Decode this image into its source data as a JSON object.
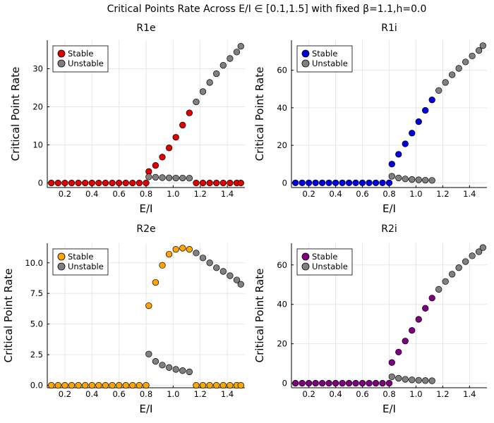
{
  "suptitle": "Critical Points Rate Across E/I ∈ [0.1,1.5] with fixed β=1.1,h=0.0",
  "colors": {
    "unstable": "#808080"
  },
  "chart_data": [
    {
      "type": "scatter",
      "title": "R1e",
      "xlabel": "E/I",
      "ylabel": "Critical Point Rate",
      "xlim": [
        0.07,
        1.53
      ],
      "ylim": [
        -1.2,
        37.5
      ],
      "xticks": [
        0.2,
        0.4,
        0.6,
        0.8,
        1.0,
        1.2,
        1.4
      ],
      "xtick_labels": [
        "0.2",
        "0.4",
        "0.6",
        "0.8",
        "1.0",
        "1.2",
        "1.4"
      ],
      "yticks": [
        0,
        10,
        20,
        30
      ],
      "ytick_labels": [
        "0",
        "10",
        "20",
        "30"
      ],
      "grid": true,
      "legend_position": "top-left",
      "series": [
        {
          "name": "Stable",
          "color": "#e00000",
          "x": [
            0.1,
            0.15,
            0.2,
            0.25,
            0.3,
            0.35,
            0.4,
            0.45,
            0.5,
            0.55,
            0.6,
            0.65,
            0.7,
            0.75,
            0.8,
            0.82,
            0.87,
            0.92,
            0.97,
            1.02,
            1.07,
            1.12,
            1.17,
            1.22,
            1.27,
            1.32,
            1.37,
            1.42,
            1.47,
            1.5
          ],
          "y": [
            0,
            0,
            0,
            0,
            0,
            0,
            0,
            0,
            0,
            0,
            0,
            0,
            0,
            0,
            0,
            3.0,
            4.6,
            6.8,
            9.2,
            12.0,
            15.2,
            18.4,
            0,
            0,
            0,
            0,
            0,
            0,
            0,
            0
          ]
        },
        {
          "name": "Unstable",
          "color": "#808080",
          "x": [
            0.82,
            0.87,
            0.92,
            0.97,
            1.02,
            1.07,
            1.12,
            1.17,
            1.22,
            1.27,
            1.32,
            1.37,
            1.42,
            1.47,
            1.5
          ],
          "y": [
            1.6,
            1.5,
            1.4,
            1.35,
            1.3,
            1.3,
            1.25,
            21.3,
            24.0,
            26.4,
            28.7,
            30.9,
            32.7,
            34.4,
            35.9
          ]
        }
      ]
    },
    {
      "type": "scatter",
      "title": "R1i",
      "xlabel": "E/I",
      "ylabel": "Critical Point Rate",
      "xlim": [
        0.07,
        1.53
      ],
      "ylim": [
        -2.5,
        76
      ],
      "xticks": [
        0.2,
        0.4,
        0.6,
        0.8,
        1.0,
        1.2,
        1.4
      ],
      "xtick_labels": [
        "0.2",
        "0.4",
        "0.6",
        "0.8",
        "1.0",
        "1.2",
        "1.4"
      ],
      "yticks": [
        0,
        20,
        40,
        60
      ],
      "ytick_labels": [
        "0",
        "20",
        "40",
        "60"
      ],
      "grid": true,
      "legend_position": "top-left",
      "series": [
        {
          "name": "Stable",
          "color": "#0000e0",
          "x": [
            0.1,
            0.15,
            0.2,
            0.25,
            0.3,
            0.35,
            0.4,
            0.45,
            0.5,
            0.55,
            0.6,
            0.65,
            0.7,
            0.75,
            0.8,
            0.82,
            0.87,
            0.92,
            0.97,
            1.02,
            1.07,
            1.12
          ],
          "y": [
            0,
            0,
            0,
            0,
            0,
            0,
            0,
            0,
            0,
            0,
            0,
            0,
            0,
            0,
            0,
            10.0,
            15.2,
            20.8,
            26.5,
            32.6,
            38.6,
            44.2
          ]
        },
        {
          "name": "Unstable",
          "color": "#808080",
          "x": [
            0.82,
            0.87,
            0.92,
            0.97,
            1.02,
            1.07,
            1.12,
            1.17,
            1.22,
            1.27,
            1.32,
            1.37,
            1.42,
            1.47,
            1.5
          ],
          "y": [
            3.5,
            2.6,
            2.1,
            1.8,
            1.6,
            1.4,
            1.3,
            49.2,
            53.5,
            57.6,
            61.0,
            64.4,
            67.6,
            70.5,
            73.1
          ]
        }
      ]
    },
    {
      "type": "scatter",
      "title": "R2e",
      "xlabel": "E/I",
      "ylabel": "Critical Point Rate",
      "xlim": [
        0.07,
        1.53
      ],
      "ylim": [
        -0.2,
        11.6
      ],
      "xticks": [
        0.2,
        0.4,
        0.6,
        0.8,
        1.0,
        1.2,
        1.4
      ],
      "xtick_labels": [
        "0.2",
        "0.4",
        "0.6",
        "0.8",
        "1.0",
        "1.2",
        "1.4"
      ],
      "yticks": [
        0,
        2.5,
        5.0,
        7.5,
        10.0
      ],
      "ytick_labels": [
        "0.0",
        "2.5",
        "5.0",
        "7.5",
        "10.0"
      ],
      "grid": true,
      "legend_position": "top-left",
      "series": [
        {
          "name": "Stable",
          "color": "#ffa500",
          "x": [
            0.1,
            0.15,
            0.2,
            0.25,
            0.3,
            0.35,
            0.4,
            0.45,
            0.5,
            0.55,
            0.6,
            0.65,
            0.7,
            0.75,
            0.8,
            0.82,
            0.87,
            0.92,
            0.97,
            1.02,
            1.07,
            1.12,
            1.17,
            1.22,
            1.27,
            1.32,
            1.37,
            1.42,
            1.47,
            1.5
          ],
          "y": [
            0,
            0,
            0,
            0,
            0,
            0,
            0,
            0,
            0,
            0,
            0,
            0,
            0,
            0,
            0,
            6.5,
            8.4,
            9.8,
            10.7,
            11.1,
            11.2,
            11.1,
            0,
            0,
            0,
            0,
            0,
            0,
            0,
            0
          ]
        },
        {
          "name": "Unstable",
          "color": "#808080",
          "x": [
            0.82,
            0.87,
            0.92,
            0.97,
            1.02,
            1.07,
            1.12,
            1.17,
            1.22,
            1.27,
            1.32,
            1.37,
            1.42,
            1.47,
            1.5
          ],
          "y": [
            2.55,
            1.95,
            1.65,
            1.45,
            1.3,
            1.2,
            1.1,
            10.8,
            10.4,
            10.0,
            9.6,
            9.3,
            8.95,
            8.6,
            8.25
          ]
        }
      ]
    },
    {
      "type": "scatter",
      "title": "R2i",
      "xlabel": "E/I",
      "ylabel": "Critical Point Rate",
      "xlim": [
        0.07,
        1.53
      ],
      "ylim": [
        -2.3,
        71
      ],
      "xticks": [
        0.2,
        0.4,
        0.6,
        0.8,
        1.0,
        1.2,
        1.4
      ],
      "xtick_labels": [
        "0.2",
        "0.4",
        "0.6",
        "0.8",
        "1.0",
        "1.2",
        "1.4"
      ],
      "yticks": [
        0,
        20,
        40,
        60
      ],
      "ytick_labels": [
        "0",
        "20",
        "40",
        "60"
      ],
      "grid": true,
      "legend_position": "top-left",
      "series": [
        {
          "name": "Stable",
          "color": "#800080",
          "x": [
            0.1,
            0.15,
            0.2,
            0.25,
            0.3,
            0.35,
            0.4,
            0.45,
            0.5,
            0.55,
            0.6,
            0.65,
            0.7,
            0.75,
            0.8,
            0.82,
            0.87,
            0.92,
            0.97,
            1.02,
            1.07,
            1.12
          ],
          "y": [
            0,
            0,
            0,
            0,
            0,
            0,
            0,
            0,
            0,
            0,
            0,
            0,
            0,
            0,
            0,
            10.5,
            15.8,
            21.4,
            26.8,
            32.4,
            38.0,
            43.2
          ]
        },
        {
          "name": "Unstable",
          "color": "#808080",
          "x": [
            0.82,
            0.87,
            0.92,
            0.97,
            1.02,
            1.07,
            1.12,
            1.17,
            1.22,
            1.27,
            1.32,
            1.37,
            1.42,
            1.47,
            1.5
          ],
          "y": [
            3.3,
            2.5,
            2.0,
            1.7,
            1.5,
            1.35,
            1.25,
            47.6,
            51.6,
            55.3,
            58.6,
            61.7,
            64.6,
            66.7,
            68.8
          ]
        }
      ]
    }
  ]
}
